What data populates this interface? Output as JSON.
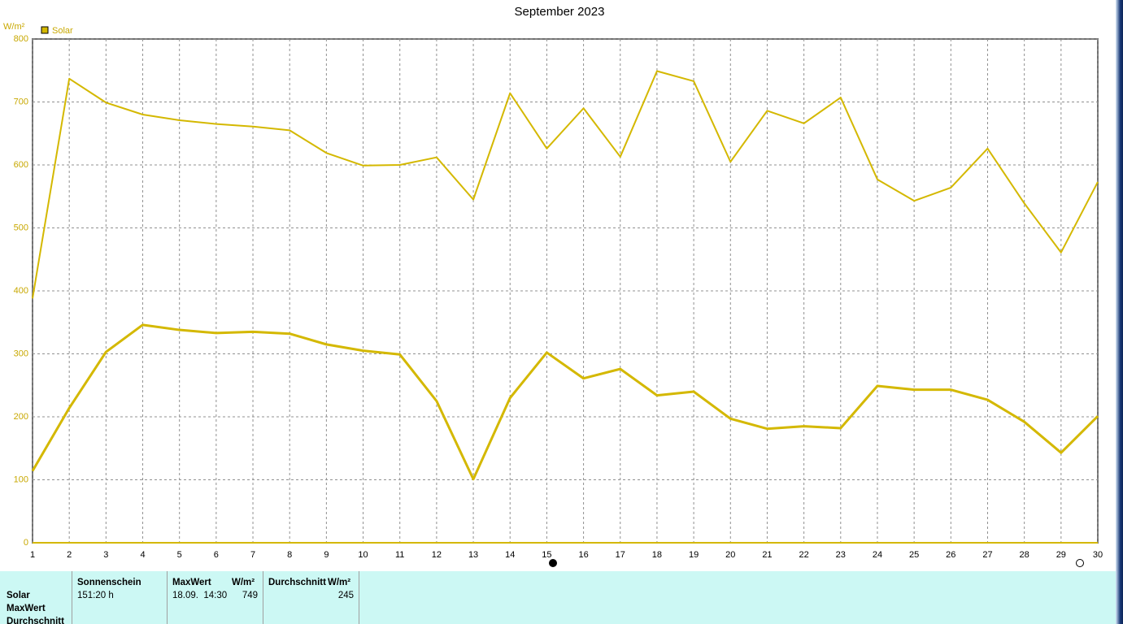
{
  "chart_data": {
    "type": "line",
    "title": "September 2023",
    "y_label": "W/m²",
    "legend_label": "Solar",
    "x": [
      1,
      2,
      3,
      4,
      5,
      6,
      7,
      8,
      9,
      10,
      11,
      12,
      13,
      14,
      15,
      16,
      17,
      18,
      19,
      20,
      21,
      22,
      23,
      24,
      25,
      26,
      27,
      28,
      29,
      30
    ],
    "xlim": [
      1,
      30
    ],
    "xticks": [
      1,
      2,
      3,
      4,
      5,
      6,
      7,
      8,
      9,
      10,
      11,
      12,
      13,
      14,
      15,
      16,
      17,
      18,
      19,
      20,
      21,
      22,
      23,
      24,
      25,
      26,
      27,
      28,
      29,
      30
    ],
    "ylim": [
      0,
      800
    ],
    "yticks": [
      0,
      100,
      200,
      300,
      400,
      500,
      600,
      700,
      800
    ],
    "grid": true,
    "series": [
      {
        "color": "#d4b800",
        "width": 2,
        "values": [
          388,
          737,
          699,
          680,
          671,
          665,
          661,
          655,
          619,
          599,
          600,
          612,
          545,
          714,
          626,
          690,
          613,
          749,
          733,
          605,
          686,
          666,
          707,
          577,
          543,
          564,
          626,
          539,
          461,
          573
        ]
      },
      {
        "color": "#d4b800",
        "width": 3,
        "values": [
          114,
          214,
          303,
          346,
          338,
          333,
          335,
          332,
          315,
          305,
          299,
          225,
          101,
          230,
          302,
          261,
          276,
          234,
          240,
          197,
          181,
          185,
          182,
          249,
          243,
          243,
          227,
          192,
          143,
          201
        ]
      }
    ]
  },
  "stats": {
    "columns": [
      "Sonnenschein",
      "MaxWert",
      "W/m²",
      "Durchschnitt",
      "W/m²"
    ],
    "row_labels": [
      "Solar",
      "MaxWert",
      "Durchschnitt"
    ],
    "solar": [
      "151:20 h",
      "18.09.  14:30",
      "749",
      "245"
    ]
  }
}
